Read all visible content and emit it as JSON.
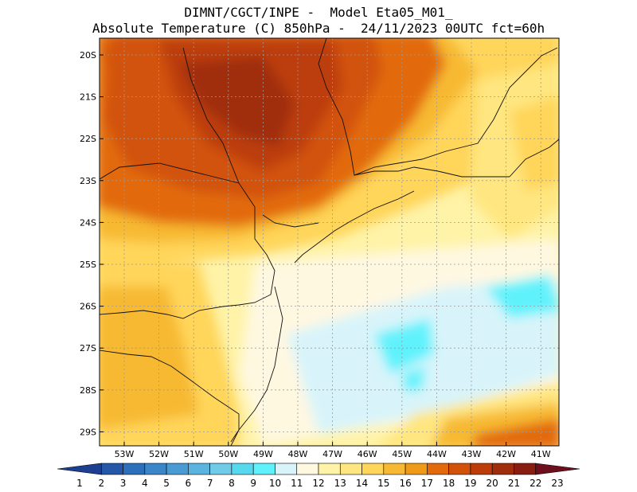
{
  "header": {
    "line1": "DIMNT/CGCT/INPE -  Model Eta05_M01_",
    "line2": "Absolute Temperature (C) 850hPa -  24/11/2023 00UTC fct=60h"
  },
  "map": {
    "lat_ticks": [
      "20S",
      "21S",
      "22S",
      "23S",
      "24S",
      "25S",
      "26S",
      "27S",
      "28S",
      "29S"
    ],
    "lon_ticks": [
      "53W",
      "52W",
      "51W",
      "50W",
      "49W",
      "48W",
      "47W",
      "46W",
      "45W",
      "44W",
      "43W",
      "42W",
      "41W"
    ]
  },
  "colorbar": {
    "labels": [
      "1",
      "2",
      "3",
      "4",
      "5",
      "6",
      "7",
      "8",
      "9",
      "10",
      "11",
      "12",
      "13",
      "14",
      "15",
      "16",
      "17",
      "18",
      "19",
      "20",
      "21",
      "22",
      "23"
    ],
    "colors": [
      "#1c3f92",
      "#2457a8",
      "#2c6fba",
      "#3a86c8",
      "#4a9bd4",
      "#5bb3e0",
      "#6fcbe8",
      "#56d9ee",
      "#60f2fc",
      "#d8f4fa",
      "#fff8e1",
      "#fff3a8",
      "#ffe680",
      "#ffd55a",
      "#f7b933",
      "#f09a1a",
      "#e26a0c",
      "#d2520a",
      "#bc3d0a",
      "#a02d0c",
      "#8a1d12",
      "#6d0f1c"
    ]
  }
}
